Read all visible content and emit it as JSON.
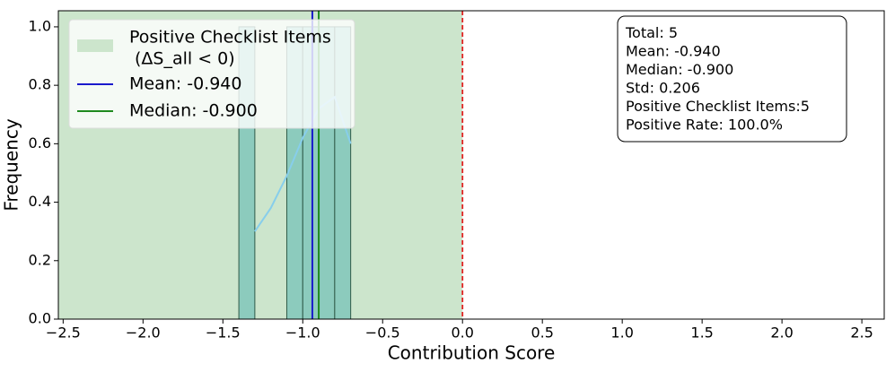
{
  "chart_data": {
    "type": "histogram",
    "xlabel": "Contribution Score",
    "ylabel": "Frequency",
    "bins": [
      -1.4,
      -1.3,
      -1.2,
      -1.1,
      -1.0,
      -0.9,
      -0.8,
      -0.7
    ],
    "counts": [
      1,
      0,
      0,
      1,
      1,
      1,
      1
    ],
    "color": "#8ccbbd",
    "edge_color": "#2f5a48",
    "kde": {
      "x": [
        -1.3,
        -1.2,
        -1.1,
        -1.0,
        -0.9,
        -0.8,
        -0.7
      ],
      "values": [
        0.3,
        0.38,
        0.49,
        0.62,
        0.72,
        0.76,
        0.6
      ],
      "color": "#87ceeb"
    },
    "span": {
      "x": [
        -2.53,
        0
      ],
      "color": "#cce5cc",
      "label": [
        "Positive Checklist Items",
        "(ΔS_all < 0)"
      ]
    },
    "zero_line": {
      "value": 0,
      "color": "#e02020"
    },
    "mean": {
      "value": -0.94,
      "color": "#1a1acc",
      "label": "Mean: -0.940"
    },
    "median": {
      "value": -0.9,
      "color": "#1f8a1f",
      "label": "Median: -0.900"
    },
    "stats": [
      "Total: 5",
      "Mean: -0.940",
      "Median: -0.900",
      "Std: 0.206",
      "Positive Checklist Items:5",
      "Positive Rate: 100.0%"
    ],
    "xlim": [
      -2.53,
      2.64
    ],
    "ylim": [
      0,
      1.055
    ],
    "xticks": [
      {
        "value": -2.5,
        "label": "−2.5"
      },
      {
        "value": -2.0,
        "label": "−2.0"
      },
      {
        "value": -1.5,
        "label": "−1.5"
      },
      {
        "value": -1.0,
        "label": "−1.0"
      },
      {
        "value": -0.5,
        "label": "−0.5"
      },
      {
        "value": 0,
        "label": "0.0"
      },
      0.5,
      {
        "value": 1,
        "label": "1.0"
      },
      1.5,
      {
        "value": 2,
        "label": "2.0"
      },
      2.5
    ],
    "yticks": [
      {
        "value": 0,
        "label": "0.0"
      },
      0.2,
      0.4,
      0.6,
      0.8,
      {
        "value": 1,
        "label": "1.0"
      }
    ]
  }
}
